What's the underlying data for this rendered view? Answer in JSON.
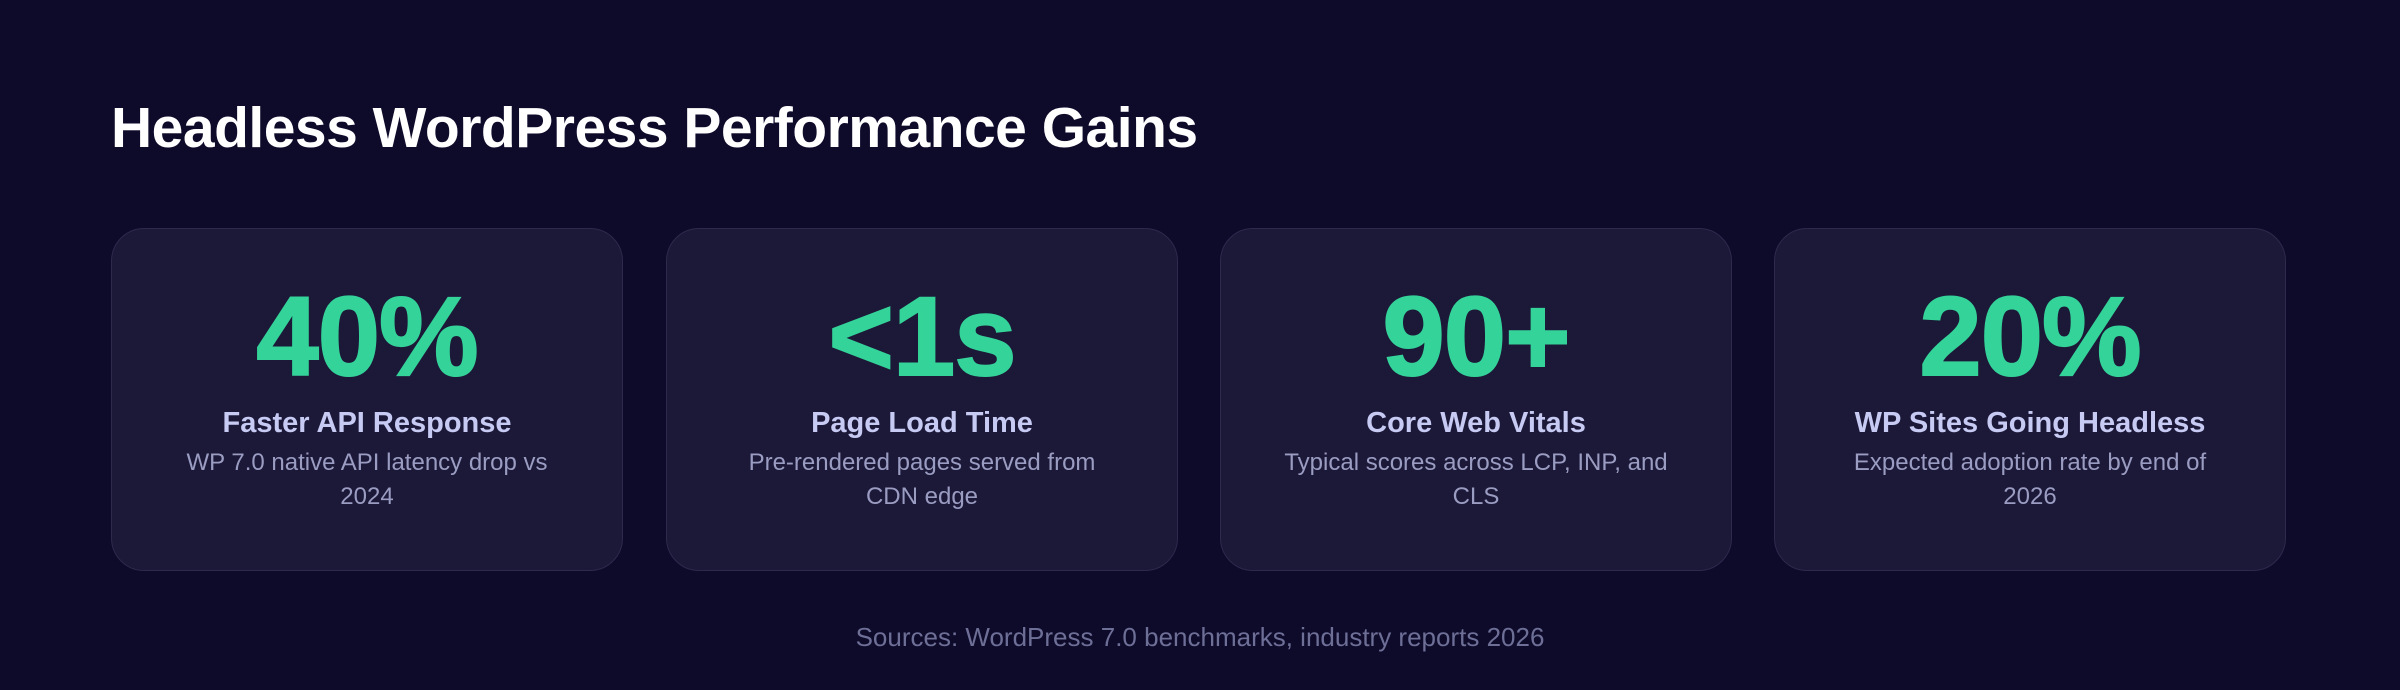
{
  "title": "Headless WordPress Performance Gains",
  "accent_color": "#34d399",
  "background_color": "#0e0a2a",
  "card_color": "#1c1838",
  "cards": [
    {
      "value": "40%",
      "label": "Faster API Response",
      "description": "WP 7.0 native API latency drop vs 2024"
    },
    {
      "value": "<1s",
      "label": "Page Load Time",
      "description": "Pre-rendered pages served from CDN edge"
    },
    {
      "value": "90+",
      "label": "Core Web Vitals",
      "description": "Typical scores across LCP, INP, and CLS"
    },
    {
      "value": "20%",
      "label": "WP Sites Going Headless",
      "description": "Expected adoption rate by end of 2026"
    }
  ],
  "sources": "Sources: WordPress 7.0 benchmarks, industry reports 2026"
}
